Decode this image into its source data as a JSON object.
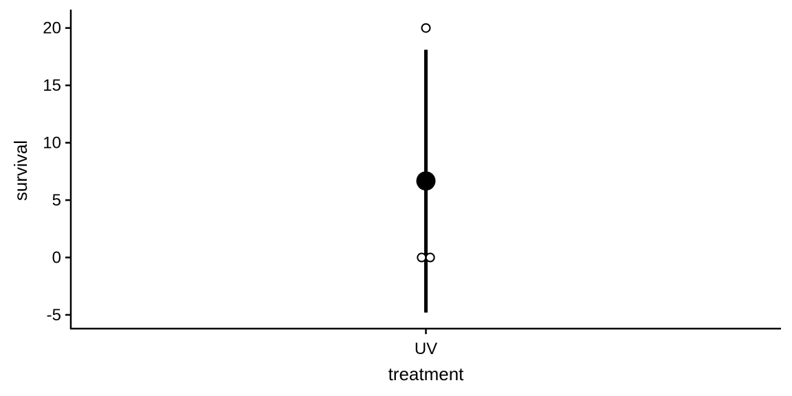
{
  "chart_data": {
    "type": "scatter",
    "xlabel": "treatment",
    "ylabel": "survival",
    "categories": [
      "UV"
    ],
    "ylim": [
      -6.2,
      21.6
    ],
    "yticks": [
      -5,
      0,
      5,
      10,
      15,
      20
    ],
    "ytick_labels": [
      "-5",
      "0",
      "5",
      "10",
      "15",
      "20"
    ],
    "grid": false,
    "legend": "none",
    "raw_points": [
      {
        "category": "UV",
        "y": 20,
        "jitter": 0.0
      },
      {
        "category": "UV",
        "y": 0,
        "jitter": -0.006
      },
      {
        "category": "UV",
        "y": 0,
        "jitter": 0.006
      }
    ],
    "summary": {
      "category": "UV",
      "mean": 6.67,
      "lower": -4.8,
      "upper": 18.1
    },
    "colors": {
      "mark": "#000000",
      "point_fill": "#ffffff",
      "background": "#ffffff"
    }
  }
}
